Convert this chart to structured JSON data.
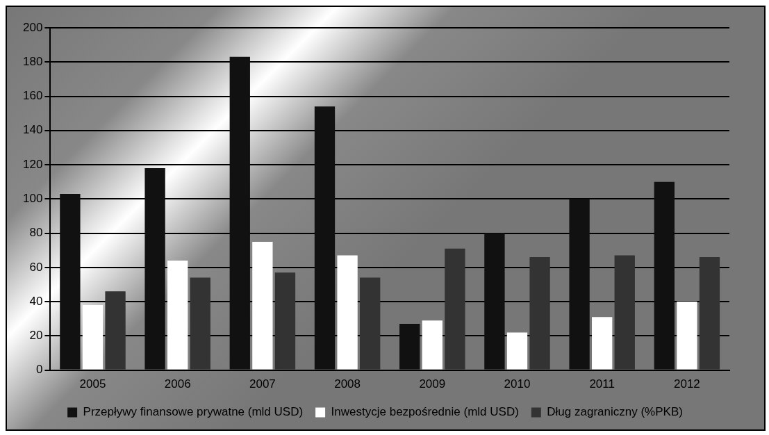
{
  "chart_data": {
    "type": "bar",
    "categories": [
      "2005",
      "2006",
      "2007",
      "2008",
      "2009",
      "2010",
      "2011",
      "2012"
    ],
    "series": [
      {
        "name": "Przepływy finansowe prywatne (mld USD)",
        "color": "#111111",
        "values": [
          103,
          118,
          183,
          154,
          27,
          80,
          100,
          110
        ]
      },
      {
        "name": "Inwestycje bezpośrednie (mld USD)",
        "color": "#ffffff",
        "values": [
          38,
          64,
          75,
          67,
          29,
          22,
          31,
          40
        ]
      },
      {
        "name": "Dług zagraniczny (%PKB)",
        "color": "#333333",
        "values": [
          46,
          54,
          57,
          54,
          71,
          66,
          67,
          66
        ]
      }
    ],
    "ylim": [
      0,
      200
    ],
    "yticks": [
      0,
      20,
      40,
      60,
      80,
      100,
      120,
      140,
      160,
      180,
      200
    ],
    "grid": "y",
    "legend": "bottom"
  }
}
